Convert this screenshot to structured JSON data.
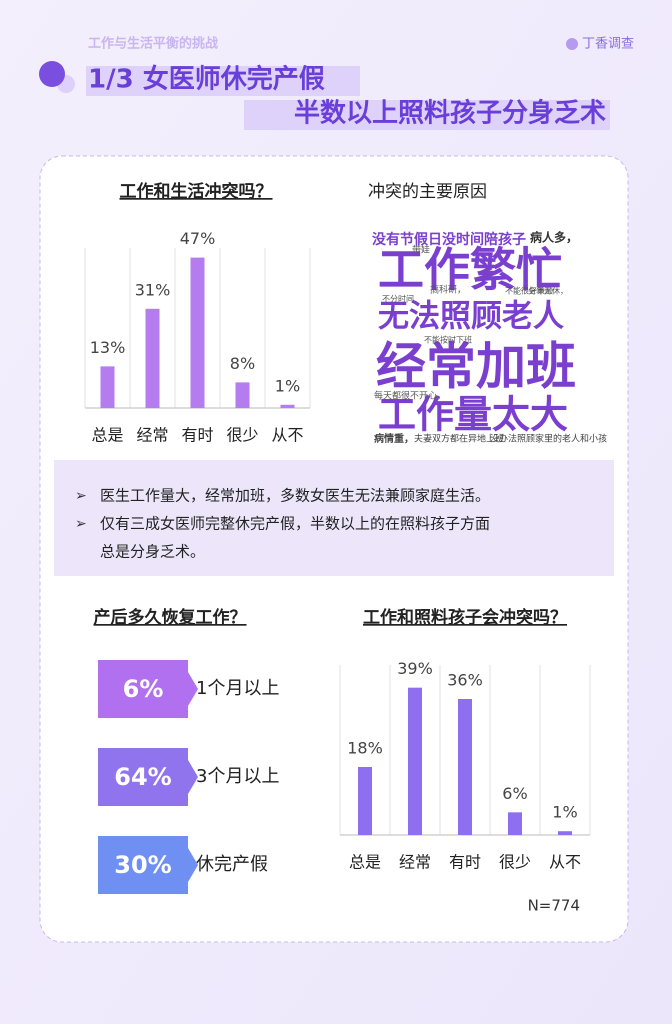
{
  "header": {
    "section": "工作与生活平衡的挑战",
    "brand": "丁香调查",
    "title_line1": "1/3 女医师休完产假",
    "title_line2": "半数以上照料孩子分身乏术"
  },
  "chart_data": [
    {
      "type": "bar",
      "title": "工作和生活冲突吗？",
      "categories": [
        "总是",
        "经常",
        "有时",
        "很少",
        "从不"
      ],
      "values": [
        13,
        31,
        47,
        8,
        1
      ],
      "value_labels": [
        "13%",
        "31%",
        "47%",
        "8%",
        "1%"
      ],
      "ylim": [
        0,
        50
      ],
      "color": "#b57cf0"
    },
    {
      "type": "label-blocks",
      "title": "产后多久恢复工作？",
      "categories": [
        "1个月以上",
        "3个月以上",
        "休完产假"
      ],
      "values": [
        6,
        64,
        30
      ],
      "value_labels": [
        "6%",
        "64%",
        "30%"
      ],
      "colors": [
        "#b070f0",
        "#8f74ee",
        "#6f90f2"
      ]
    },
    {
      "type": "bar",
      "title": "工作和照料孩子会冲突吗？",
      "categories": [
        "总是",
        "经常",
        "有时",
        "很少",
        "从不"
      ],
      "values": [
        18,
        39,
        36,
        6,
        1
      ],
      "value_labels": [
        "18%",
        "39%",
        "36%",
        "6%",
        "1%"
      ],
      "ylim": [
        0,
        45
      ],
      "color": "#8d6ff0"
    }
  ],
  "word_cloud": {
    "title": "冲突的主要原因",
    "words": [
      "没有节假日没时间陪孩子",
      "病人多，",
      "工作繁忙",
      "无法照顾老人",
      "经常加班",
      "工作量太大",
      "病情重，",
      "夫妻双方都在异地上班",
      "没办法照顾家里的老人和小孩",
      "带娃",
      "搞科研，",
      "不能按时下班",
      "每天都很不开心，",
      "不能很好兼顾",
      "全年无休，",
      "不分时间"
    ]
  },
  "bullets": [
    [
      "医生工作量大，经常加班，多数女医生无法兼顾家庭生活。"
    ],
    [
      "仅有三成女医师完整休完产假，半数以上的在照料孩子方面",
      "总是分身乏术。"
    ]
  ],
  "note": "N=774"
}
